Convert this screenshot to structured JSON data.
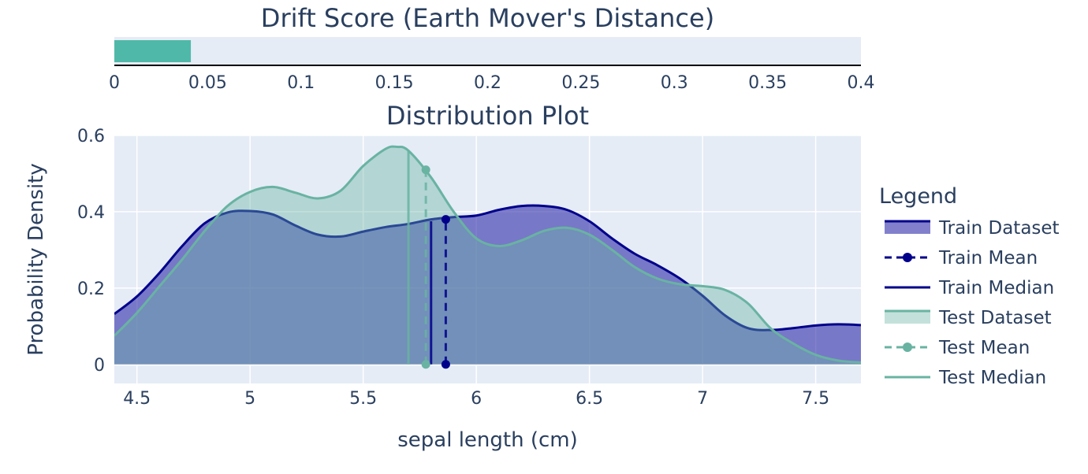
{
  "chart_data": [
    {
      "type": "bar",
      "title": "Drift Score (Earth Mover's Distance)",
      "orientation": "horizontal",
      "value": 0.041,
      "xlim": [
        0,
        0.4
      ],
      "xticks": [
        "0",
        "0.05",
        "0.1",
        "0.15",
        "0.2",
        "0.25",
        "0.3",
        "0.35",
        "0.4"
      ],
      "bar_color": "#50b8a8",
      "background": "#e5ecf6"
    },
    {
      "type": "area",
      "title": "Distribution Plot",
      "xlabel": "sepal length (cm)",
      "ylabel": "Probability Density",
      "xlim": [
        4.4,
        7.7
      ],
      "ylim": [
        -0.05,
        0.6
      ],
      "xticks": [
        "4.5",
        "5",
        "5.5",
        "6",
        "6.5",
        "7",
        "7.5"
      ],
      "yticks": [
        "0",
        "0.2",
        "0.4",
        "0.6"
      ],
      "grid": true,
      "legend_title": "Legend",
      "legend_position": "right",
      "series": [
        {
          "name": "Train Dataset",
          "color": "#00008b",
          "fill": "rgba(47,44,170,0.6)",
          "x": [
            4.4,
            4.5,
            4.6,
            4.7,
            4.8,
            4.9,
            5.0,
            5.1,
            5.2,
            5.3,
            5.4,
            5.5,
            5.6,
            5.7,
            5.8,
            5.9,
            6.0,
            6.1,
            6.2,
            6.3,
            6.4,
            6.5,
            6.6,
            6.7,
            6.8,
            6.9,
            7.0,
            7.1,
            7.2,
            7.3,
            7.4,
            7.5,
            7.6,
            7.7
          ],
          "y": [
            0.132,
            0.178,
            0.24,
            0.31,
            0.37,
            0.398,
            0.402,
            0.393,
            0.364,
            0.34,
            0.335,
            0.348,
            0.36,
            0.368,
            0.38,
            0.386,
            0.39,
            0.405,
            0.415,
            0.415,
            0.405,
            0.375,
            0.33,
            0.29,
            0.26,
            0.225,
            0.18,
            0.128,
            0.095,
            0.09,
            0.095,
            0.102,
            0.105,
            0.103
          ]
        },
        {
          "name": "Test Dataset",
          "color": "#69b3a2",
          "fill": "rgba(105,179,162,0.4)",
          "x": [
            4.4,
            4.5,
            4.6,
            4.7,
            4.8,
            4.9,
            5.0,
            5.1,
            5.2,
            5.3,
            5.4,
            5.5,
            5.6,
            5.65,
            5.7,
            5.8,
            5.9,
            6.0,
            6.1,
            6.2,
            6.3,
            6.4,
            6.5,
            6.6,
            6.7,
            6.8,
            6.9,
            7.0,
            7.1,
            7.2,
            7.3,
            7.4,
            7.5,
            7.6,
            7.7
          ],
          "y": [
            0.075,
            0.135,
            0.205,
            0.275,
            0.35,
            0.415,
            0.452,
            0.465,
            0.45,
            0.435,
            0.455,
            0.52,
            0.565,
            0.57,
            0.56,
            0.49,
            0.4,
            0.33,
            0.31,
            0.325,
            0.35,
            0.358,
            0.34,
            0.3,
            0.255,
            0.225,
            0.21,
            0.205,
            0.195,
            0.16,
            0.095,
            0.055,
            0.025,
            0.01,
            0.005
          ]
        },
        {
          "name": "Train Mean",
          "color": "#00008b",
          "x": 5.865,
          "y": 0.38,
          "dash": true
        },
        {
          "name": "Train Median",
          "color": "#00008b",
          "x": 5.8,
          "y": 0.375
        },
        {
          "name": "Test Mean",
          "color": "#69b3a2",
          "x": 5.777,
          "y": 0.51,
          "dash": true
        },
        {
          "name": "Test Median",
          "color": "#69b3a2",
          "x": 5.7,
          "y": 0.56
        }
      ]
    }
  ]
}
